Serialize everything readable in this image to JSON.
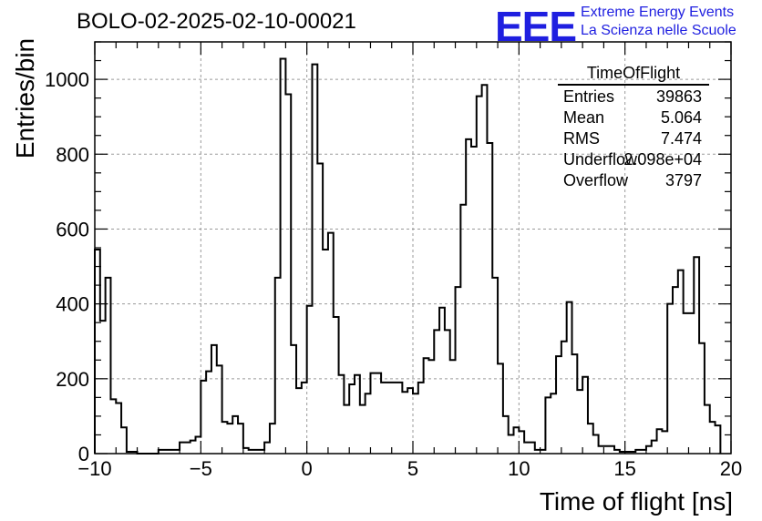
{
  "chart_data": {
    "type": "bar",
    "title": "BOLO-02-2025-02-10-00021",
    "xlabel": "Time of flight [ns]",
    "ylabel": "Entries/bin",
    "xlim": [
      -10,
      20
    ],
    "ylim": [
      0,
      1100
    ],
    "grid": true,
    "x_ticks": [
      "−10",
      "−5",
      "0",
      "5",
      "10",
      "15",
      "20"
    ],
    "y_ticks": [
      "0",
      "200",
      "400",
      "600",
      "800",
      "1000"
    ],
    "bin_width": 0.25,
    "bin_start": -10,
    "values": [
      545,
      355,
      470,
      145,
      135,
      70,
      5,
      5,
      0,
      0,
      0,
      0,
      10,
      10,
      10,
      10,
      30,
      30,
      35,
      45,
      195,
      220,
      290,
      235,
      85,
      80,
      100,
      80,
      15,
      10,
      10,
      10,
      30,
      80,
      470,
      1055,
      960,
      290,
      175,
      190,
      395,
      1040,
      775,
      545,
      590,
      365,
      210,
      130,
      185,
      210,
      130,
      160,
      215,
      215,
      190,
      190,
      190,
      190,
      165,
      175,
      160,
      190,
      255,
      250,
      330,
      390,
      330,
      250,
      445,
      665,
      840,
      820,
      955,
      985,
      830,
      470,
      240,
      100,
      50,
      70,
      60,
      30,
      30,
      10,
      10,
      150,
      160,
      260,
      300,
      405,
      265,
      170,
      205,
      80,
      50,
      20,
      20,
      20,
      10,
      5,
      5,
      5,
      10,
      10,
      20,
      35,
      65,
      60,
      400,
      445,
      490,
      375,
      375,
      525,
      295,
      130,
      85,
      75
    ]
  },
  "brand": {
    "logo": "EEE",
    "line1": "Extreme Energy Events",
    "line2": "La Scienza nelle Scuole",
    "color": "#1f1fe0"
  },
  "stats": {
    "title": "TimeOfFlight",
    "rows": [
      {
        "key": "Entries",
        "value": "39863"
      },
      {
        "key": "Mean",
        "value": "5.064"
      },
      {
        "key": "RMS",
        "value": "7.474"
      },
      {
        "key": "Underflow",
        "value": "2.098e+04"
      },
      {
        "key": "Overflow",
        "value": "3797"
      }
    ]
  }
}
